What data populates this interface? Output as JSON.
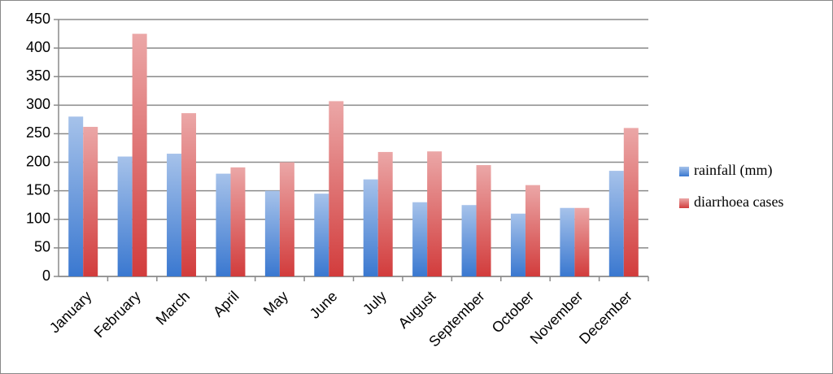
{
  "chart_data": {
    "type": "bar",
    "categories": [
      "January",
      "February",
      "March",
      "April",
      "May",
      "June",
      "July",
      "August",
      "September",
      "October",
      "November",
      "December"
    ],
    "series": [
      {
        "name": "rainfall (mm)",
        "color": "#3a78d0",
        "values": [
          280,
          210,
          215,
          180,
          150,
          145,
          170,
          130,
          125,
          110,
          120,
          185
        ]
      },
      {
        "name": "diarrhoea cases",
        "color": "#d23c3c",
        "values": [
          262,
          425,
          286,
          191,
          200,
          307,
          218,
          219,
          195,
          160,
          120,
          260
        ]
      }
    ],
    "ylim": [
      0,
      450
    ],
    "yticks": [
      0,
      50,
      100,
      150,
      200,
      250,
      300,
      350,
      400,
      450
    ],
    "grid": true,
    "legend": "right"
  }
}
